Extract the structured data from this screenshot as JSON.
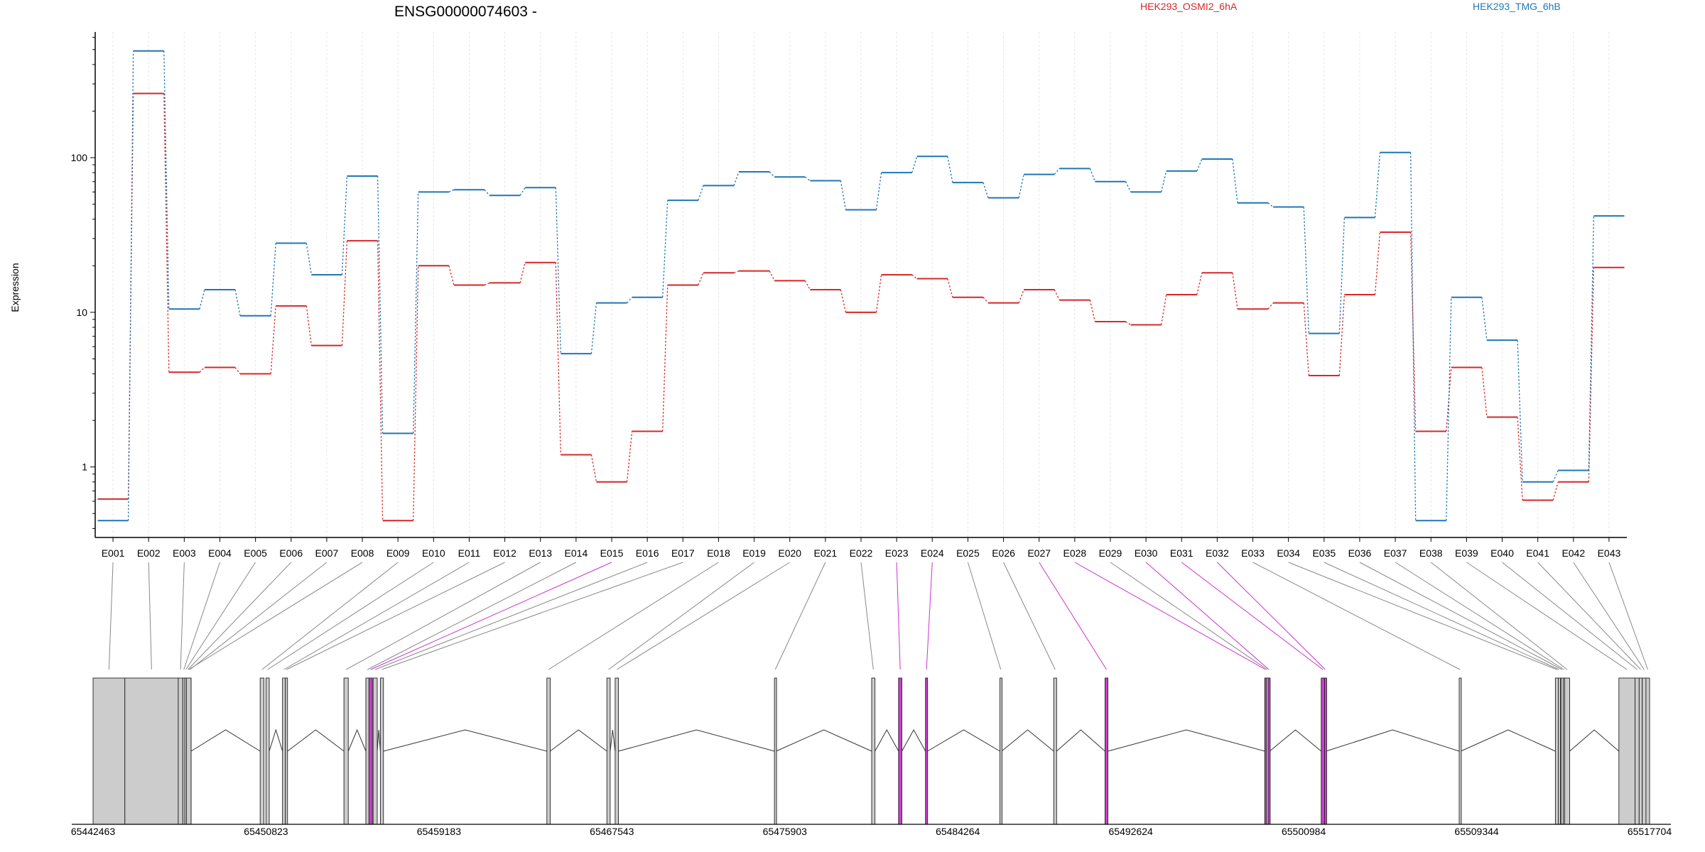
{
  "chart_data": {
    "type": "line",
    "title": "ENSG00000074603 -",
    "ylabel": "Expression",
    "yscale": "log",
    "ylim": [
      0.35,
      650
    ],
    "yticks": [
      {
        "label": "1",
        "value": 1
      },
      {
        "label": "10",
        "value": 10
      },
      {
        "label": "100",
        "value": 100
      }
    ],
    "legend_placement": "top",
    "colors": {
      "accent_a": "#d62728",
      "accent_b": "#1f77b4",
      "highlight": "#cc33cc"
    },
    "categories": [
      "E001",
      "E002",
      "E003",
      "E004",
      "E005",
      "E006",
      "E007",
      "E008",
      "E009",
      "E010",
      "E011",
      "E012",
      "E013",
      "E014",
      "E015",
      "E016",
      "E017",
      "E018",
      "E019",
      "E020",
      "E021",
      "E022",
      "E023",
      "E024",
      "E025",
      "E026",
      "E027",
      "E028",
      "E029",
      "E030",
      "E031",
      "E032",
      "E033",
      "E034",
      "E035",
      "E036",
      "E037",
      "E038",
      "E039",
      "E040",
      "E041",
      "E042",
      "E043"
    ],
    "series": [
      {
        "name": "HEK293_OSMI2_6hA",
        "color": "#d62728",
        "values": [
          0.62,
          260,
          4.1,
          4.4,
          4.0,
          11,
          6.1,
          29,
          0.45,
          20,
          15,
          15.5,
          21,
          1.2,
          0.8,
          1.7,
          15,
          18,
          18.5,
          16,
          14,
          10,
          17.5,
          16.5,
          12.5,
          11.5,
          14,
          12,
          8.7,
          8.3,
          13,
          18,
          10.5,
          11.5,
          3.9,
          13,
          33,
          1.7,
          4.4,
          2.1,
          0.61,
          0.8,
          19.5
        ]
      },
      {
        "name": "HEK293_TMG_6hB",
        "color": "#1f77b4",
        "values": [
          0.45,
          490,
          10.5,
          14,
          9.5,
          28,
          17.5,
          76,
          1.65,
          60,
          62,
          57,
          64,
          5.4,
          11.5,
          12.5,
          53,
          66,
          81,
          75,
          71,
          46,
          80,
          102,
          69,
          55,
          78,
          85,
          70,
          60,
          82,
          98,
          51,
          48,
          7.3,
          41,
          108,
          0.45,
          12.5,
          6.6,
          0.8,
          0.95,
          42
        ]
      }
    ],
    "highlight_exons": [
      "E015",
      "E023",
      "E024",
      "E027",
      "E028",
      "E030",
      "E031",
      "E032"
    ],
    "genomic_axis": {
      "ticks": [
        "65442463",
        "65450823",
        "65459183",
        "65467543",
        "65475903",
        "65484264",
        "65492624",
        "65500984",
        "65509344",
        "65517704"
      ],
      "range": [
        65442463,
        65517704
      ]
    },
    "gene_model": {
      "exons": [
        {
          "id": "E001",
          "start": 65442463,
          "end": 65444000
        },
        {
          "id": "E002",
          "start": 65444000,
          "end": 65446580
        },
        {
          "id": "E003",
          "start": 65446580,
          "end": 65446800
        },
        {
          "id": "E004",
          "start": 65446800,
          "end": 65446900
        },
        {
          "id": "E005",
          "start": 65446900,
          "end": 65447000
        },
        {
          "id": "E006",
          "start": 65447000,
          "end": 65447100
        },
        {
          "id": "E007",
          "start": 65447100,
          "end": 65447200
        },
        {
          "id": "E008",
          "start": 65447200,
          "end": 65446980
        },
        {
          "id": "E009",
          "start": 65450540,
          "end": 65450720
        },
        {
          "id": "E010",
          "start": 65450820,
          "end": 65450980
        },
        {
          "id": "E011",
          "start": 65451620,
          "end": 65451760
        },
        {
          "id": "E012",
          "start": 65451760,
          "end": 65451860
        },
        {
          "id": "E013",
          "start": 65454590,
          "end": 65454800
        },
        {
          "id": "E014",
          "start": 65455650,
          "end": 65455800
        },
        {
          "id": "E015",
          "start": 65455800,
          "end": 65455960
        },
        {
          "id": "E016",
          "start": 65456000,
          "end": 65456200
        },
        {
          "id": "E017",
          "start": 65456350,
          "end": 65456500
        },
        {
          "id": "E018",
          "start": 65464400,
          "end": 65464560
        },
        {
          "id": "E019",
          "start": 65467300,
          "end": 65467460
        },
        {
          "id": "E020",
          "start": 65467700,
          "end": 65467860
        },
        {
          "id": "E021",
          "start": 65475400,
          "end": 65475480
        },
        {
          "id": "E022",
          "start": 65480100,
          "end": 65480260
        },
        {
          "id": "E023",
          "start": 65481400,
          "end": 65481560
        },
        {
          "id": "E024",
          "start": 65482700,
          "end": 65482800
        },
        {
          "id": "E025",
          "start": 65486300,
          "end": 65486380
        },
        {
          "id": "E026",
          "start": 65488900,
          "end": 65489040
        },
        {
          "id": "E027",
          "start": 65491380,
          "end": 65491520
        },
        {
          "id": "E028",
          "start": 65499100,
          "end": 65499180
        },
        {
          "id": "E029",
          "start": 65499180,
          "end": 65499260
        },
        {
          "id": "E030",
          "start": 65499260,
          "end": 65499340
        },
        {
          "id": "E031",
          "start": 65501830,
          "end": 65501990
        },
        {
          "id": "E032",
          "start": 65501990,
          "end": 65502060
        },
        {
          "id": "E033",
          "start": 65508500,
          "end": 65508580
        },
        {
          "id": "E034",
          "start": 65513150,
          "end": 65513290
        },
        {
          "id": "E035",
          "start": 65513290,
          "end": 65513360
        },
        {
          "id": "E036",
          "start": 65513420,
          "end": 65513530
        },
        {
          "id": "E037",
          "start": 65513530,
          "end": 65513600
        },
        {
          "id": "E038",
          "start": 65513600,
          "end": 65513840
        },
        {
          "id": "E039",
          "start": 65516220,
          "end": 65517000
        },
        {
          "id": "E040",
          "start": 65517000,
          "end": 65517200
        },
        {
          "id": "E041",
          "start": 65517200,
          "end": 65517350
        },
        {
          "id": "E042",
          "start": 65517350,
          "end": 65517530
        },
        {
          "id": "E043",
          "start": 65517530,
          "end": 65517704
        }
      ]
    }
  }
}
